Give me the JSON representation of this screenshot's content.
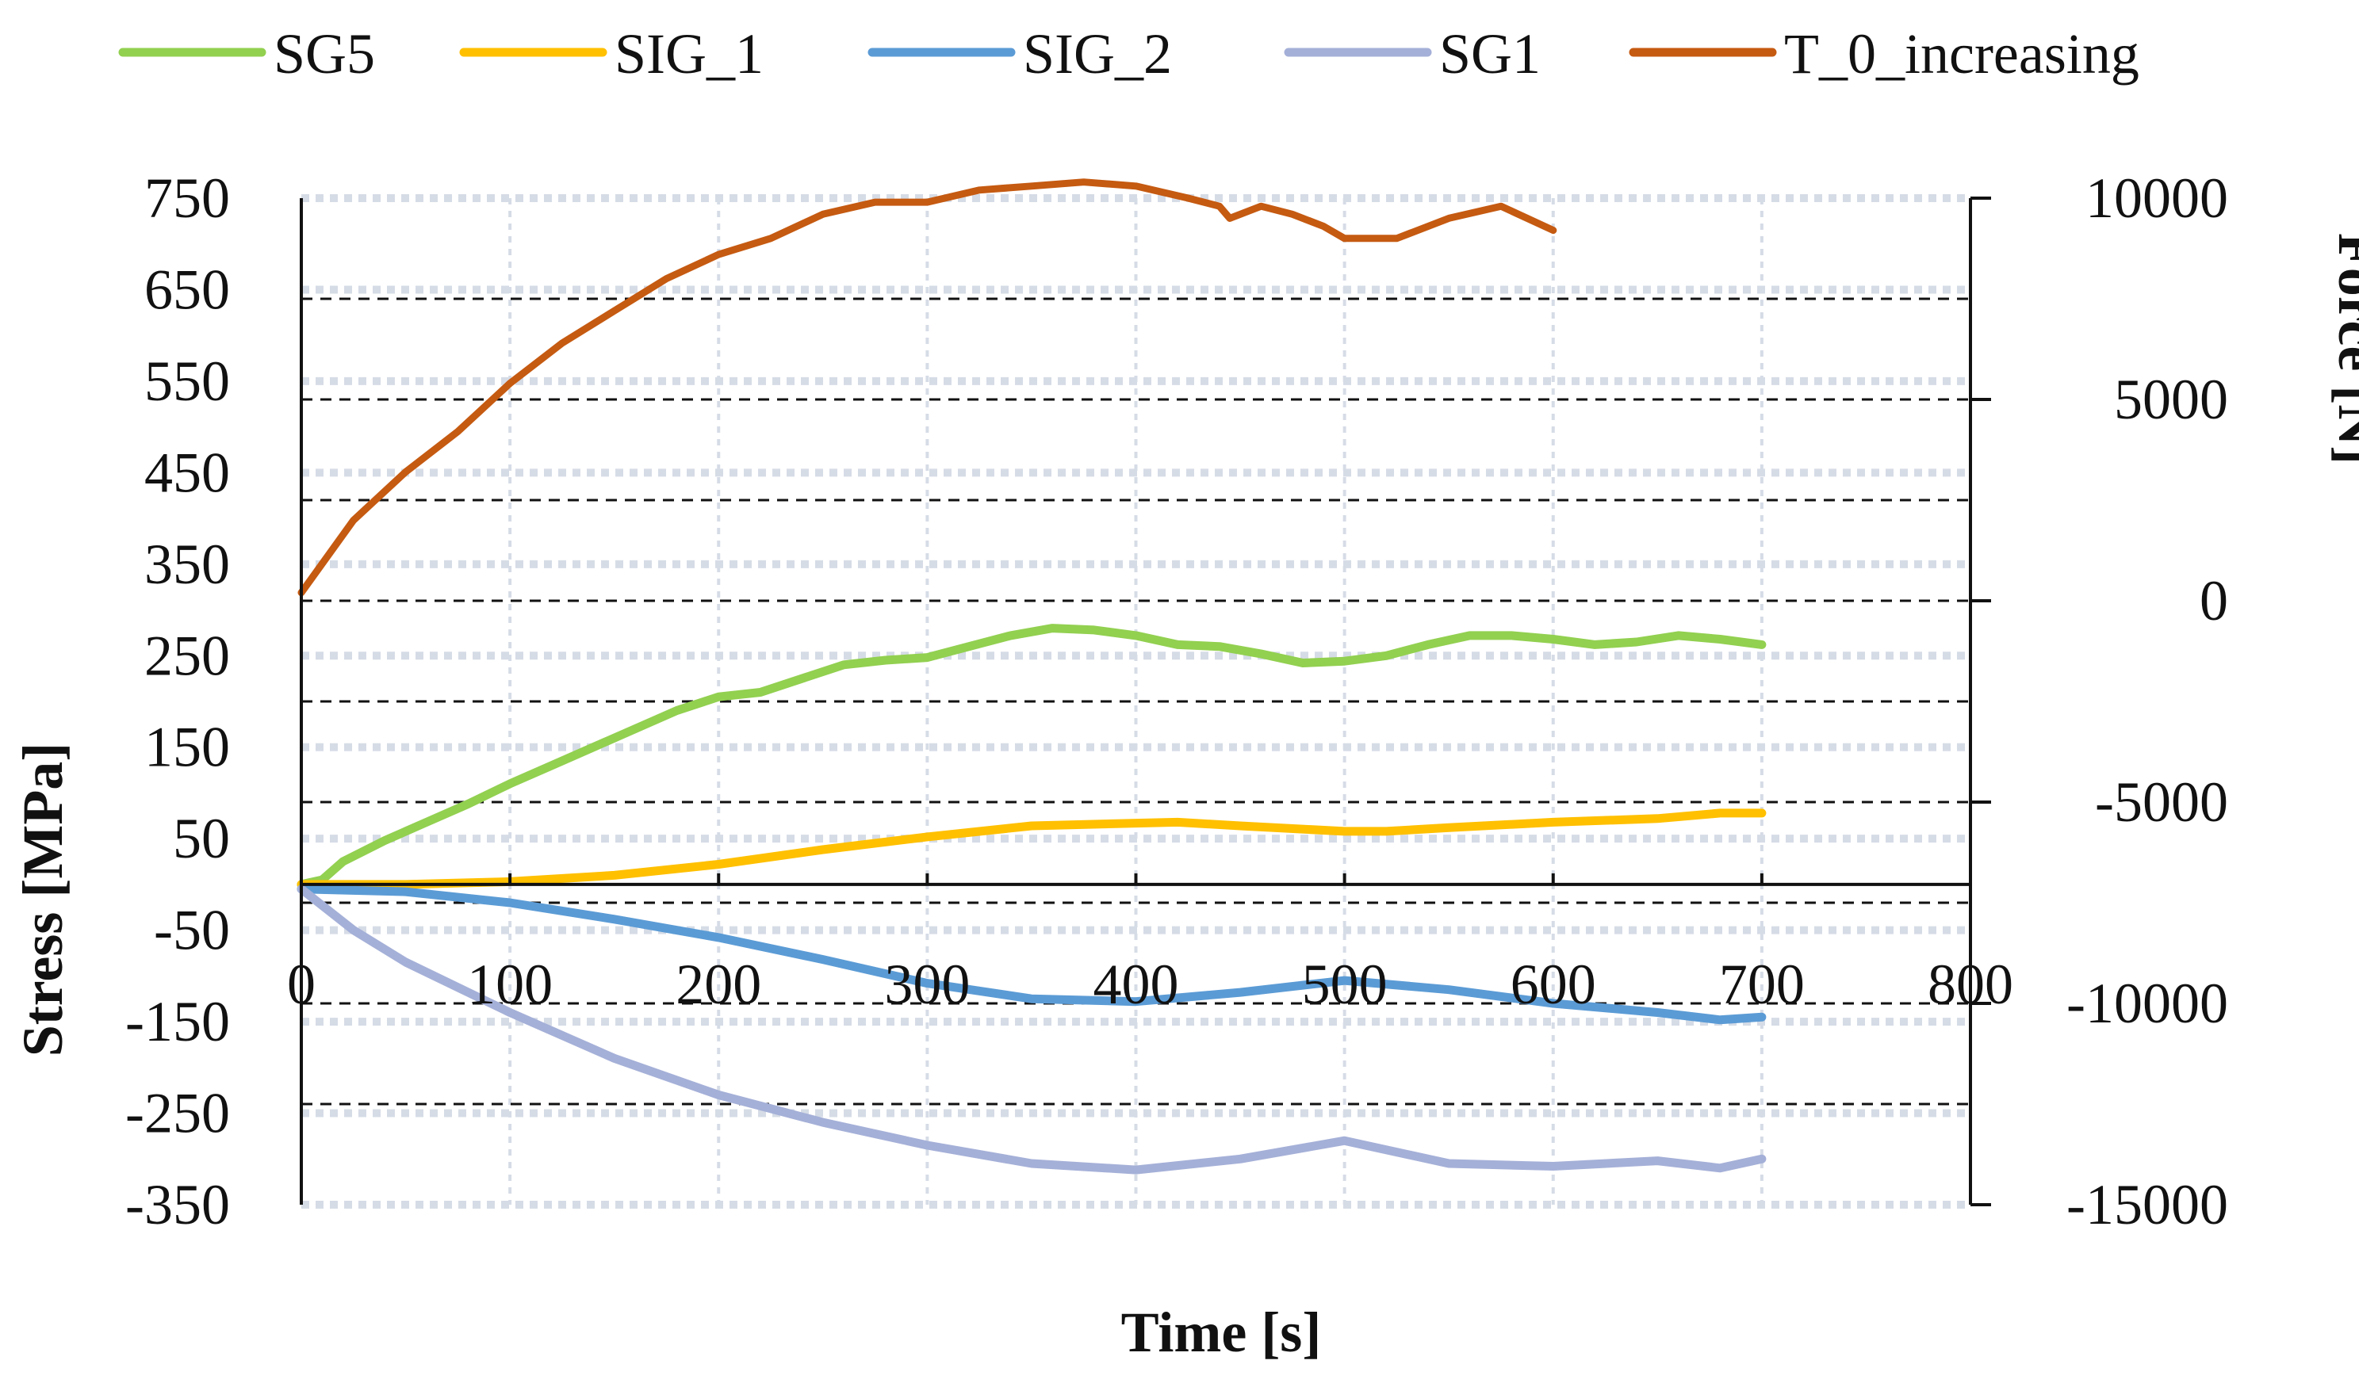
{
  "chart_data": {
    "type": "line",
    "title": "",
    "xlabel": "Time [s]",
    "ylabel": "Stress [MPa]",
    "y2label": "Force [N]",
    "xlim": [
      0,
      800
    ],
    "ylim": [
      -350,
      750
    ],
    "y2lim": [
      -15000,
      10000
    ],
    "xticks": [
      0,
      100,
      200,
      300,
      400,
      500,
      600,
      700,
      800
    ],
    "yticks": [
      750,
      650,
      550,
      450,
      350,
      250,
      150,
      50,
      -50,
      -150,
      -250,
      -350
    ],
    "y2ticks": [
      10000,
      5000,
      0,
      -5000,
      -10000,
      -15000
    ],
    "legend_position": "top",
    "grid": true,
    "series": [
      {
        "name": "SG5",
        "color": "#92d050",
        "axis": "left",
        "x": [
          0,
          10,
          20,
          40,
          60,
          80,
          100,
          120,
          140,
          160,
          180,
          200,
          220,
          240,
          260,
          280,
          300,
          320,
          340,
          360,
          380,
          400,
          420,
          440,
          460,
          480,
          500,
          520,
          540,
          560,
          580,
          600,
          620,
          640,
          660,
          680,
          700
        ],
        "y": [
          0,
          5,
          25,
          48,
          68,
          88,
          110,
          130,
          150,
          170,
          190,
          205,
          210,
          225,
          240,
          245,
          248,
          260,
          272,
          280,
          278,
          272,
          262,
          260,
          252,
          242,
          244,
          250,
          262,
          272,
          272,
          268,
          262,
          265,
          272,
          268,
          262
        ]
      },
      {
        "name": "SIG_1",
        "color": "#ffc000",
        "axis": "left",
        "x": [
          0,
          50,
          100,
          150,
          200,
          250,
          300,
          350,
          400,
          420,
          450,
          500,
          520,
          550,
          600,
          650,
          680,
          700
        ],
        "y": [
          0,
          0,
          3,
          10,
          22,
          38,
          52,
          64,
          67,
          68,
          64,
          58,
          58,
          62,
          68,
          72,
          78,
          78
        ]
      },
      {
        "name": "SIG_2",
        "color": "#5b9bd5",
        "axis": "left",
        "x": [
          0,
          50,
          100,
          150,
          200,
          250,
          300,
          350,
          400,
          450,
          500,
          550,
          600,
          650,
          680,
          700
        ],
        "y": [
          -5,
          -8,
          -20,
          -38,
          -58,
          -82,
          -108,
          -125,
          -128,
          -118,
          -105,
          -115,
          -130,
          -140,
          -148,
          -145
        ]
      },
      {
        "name": "SG1",
        "color": "#a5b0d8",
        "axis": "left",
        "x": [
          0,
          25,
          50,
          100,
          150,
          200,
          250,
          300,
          350,
          400,
          450,
          500,
          550,
          600,
          650,
          680,
          700
        ],
        "y": [
          -5,
          -50,
          -85,
          -140,
          -190,
          -230,
          -260,
          -285,
          -305,
          -312,
          -300,
          -280,
          -305,
          -308,
          -302,
          -310,
          -300
        ]
      },
      {
        "name": "T_0_increasing",
        "color": "#c55a11",
        "axis": "right",
        "x": [
          0,
          25,
          50,
          75,
          100,
          125,
          150,
          175,
          200,
          225,
          250,
          275,
          300,
          325,
          350,
          375,
          400,
          425,
          440,
          445,
          460,
          475,
          490,
          500,
          525,
          550,
          575,
          600
        ],
        "y": [
          200,
          2000,
          3200,
          4200,
          5400,
          6400,
          7200,
          8000,
          8600,
          9000,
          9600,
          9900,
          9900,
          10200,
          10300,
          10400,
          10300,
          10000,
          9800,
          9500,
          9800,
          9600,
          9300,
          9000,
          9000,
          9500,
          9800,
          9200
        ]
      }
    ]
  }
}
